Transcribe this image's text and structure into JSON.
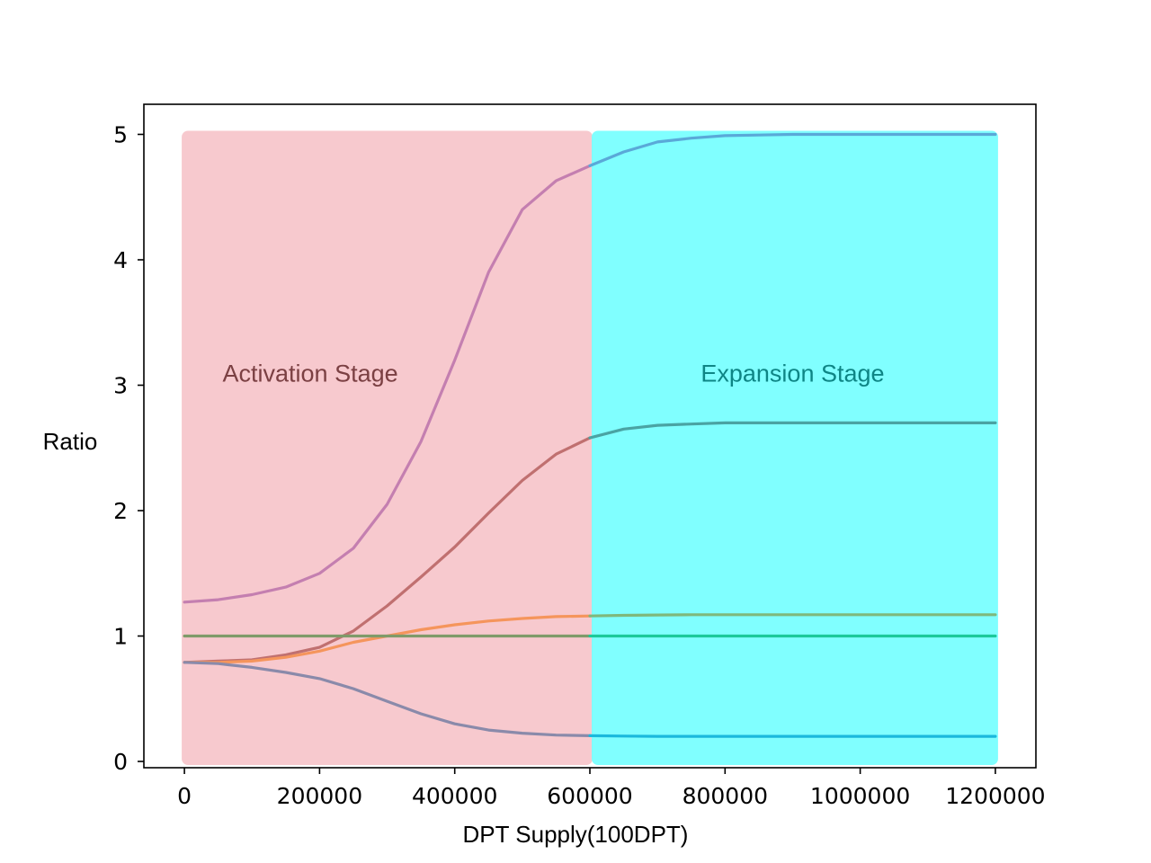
{
  "chart_data": {
    "type": "line",
    "title": "",
    "xlabel": "DPT Supply(100DPT)",
    "ylabel": "Ratio",
    "xlim": [
      -60000,
      1260000
    ],
    "ylim": [
      -0.05,
      5.24
    ],
    "x_ticks": [
      0,
      200000,
      400000,
      600000,
      800000,
      1000000,
      1200000
    ],
    "x_tick_labels": [
      "0",
      "200000",
      "400000",
      "600000",
      "800000",
      "1000000",
      "1200000"
    ],
    "y_ticks": [
      0,
      1,
      2,
      3,
      4,
      5
    ],
    "y_tick_labels": [
      "0",
      "1",
      "2",
      "3",
      "4",
      "5"
    ],
    "grid": false,
    "legend": "none",
    "regions": [
      {
        "label": "Activation Stage",
        "x_start": 0,
        "x_end": 600000,
        "y_start": 0,
        "y_end": 5,
        "color": "#f7c9ce",
        "text_color": "#7b4043"
      },
      {
        "label": "Expansion Stage",
        "x_start": 600000,
        "x_end": 1200000,
        "y_start": 0,
        "y_end": 5,
        "color": "#80ffff",
        "text_color": "#0e8585"
      }
    ],
    "x": [
      0,
      50000,
      100000,
      150000,
      200000,
      250000,
      300000,
      350000,
      400000,
      450000,
      500000,
      550000,
      600000,
      650000,
      700000,
      750000,
      800000,
      850000,
      900000,
      950000,
      1000000,
      1050000,
      1100000,
      1150000,
      1200000
    ],
    "series": [
      {
        "color_activation": "#c47fb0",
        "color_expansion": "#5aa9d8",
        "values": [
          1.27,
          1.29,
          1.33,
          1.39,
          1.5,
          1.7,
          2.05,
          2.55,
          3.2,
          3.9,
          4.4,
          4.63,
          4.75,
          4.86,
          4.94,
          4.97,
          4.99,
          4.995,
          5.0,
          5.0,
          5.0,
          5.0,
          5.0,
          5.0,
          5.0
        ]
      },
      {
        "color_activation": "#c07070",
        "color_expansion": "#4aa3a3",
        "values": [
          0.79,
          0.8,
          0.81,
          0.85,
          0.91,
          1.04,
          1.24,
          1.47,
          1.71,
          1.98,
          2.24,
          2.45,
          2.58,
          2.65,
          2.68,
          2.69,
          2.7,
          2.7,
          2.7,
          2.7,
          2.7,
          2.7,
          2.7,
          2.7,
          2.7
        ]
      },
      {
        "color_activation": "#f5955c",
        "color_expansion": "#7fb87c",
        "values": [
          0.79,
          0.79,
          0.8,
          0.83,
          0.88,
          0.95,
          1.0,
          1.05,
          1.09,
          1.12,
          1.14,
          1.155,
          1.16,
          1.165,
          1.168,
          1.17,
          1.17,
          1.17,
          1.17,
          1.17,
          1.17,
          1.17,
          1.17,
          1.17,
          1.17
        ]
      },
      {
        "color_activation": "#7f9b6a",
        "color_expansion": "#1cc99a",
        "values": [
          1.0,
          1.0,
          1.0,
          1.0,
          1.0,
          1.0,
          1.0,
          1.0,
          1.0,
          1.0,
          1.0,
          1.0,
          1.0,
          1.0,
          1.0,
          1.0,
          1.0,
          1.0,
          1.0,
          1.0,
          1.0,
          1.0,
          1.0,
          1.0,
          1.0
        ]
      },
      {
        "color_activation": "#8a8aaa",
        "color_expansion": "#1ab8dc",
        "values": [
          0.79,
          0.78,
          0.75,
          0.71,
          0.66,
          0.58,
          0.48,
          0.38,
          0.3,
          0.25,
          0.225,
          0.21,
          0.205,
          0.202,
          0.2,
          0.2,
          0.2,
          0.2,
          0.2,
          0.2,
          0.2,
          0.2,
          0.2,
          0.2,
          0.2
        ]
      }
    ]
  }
}
